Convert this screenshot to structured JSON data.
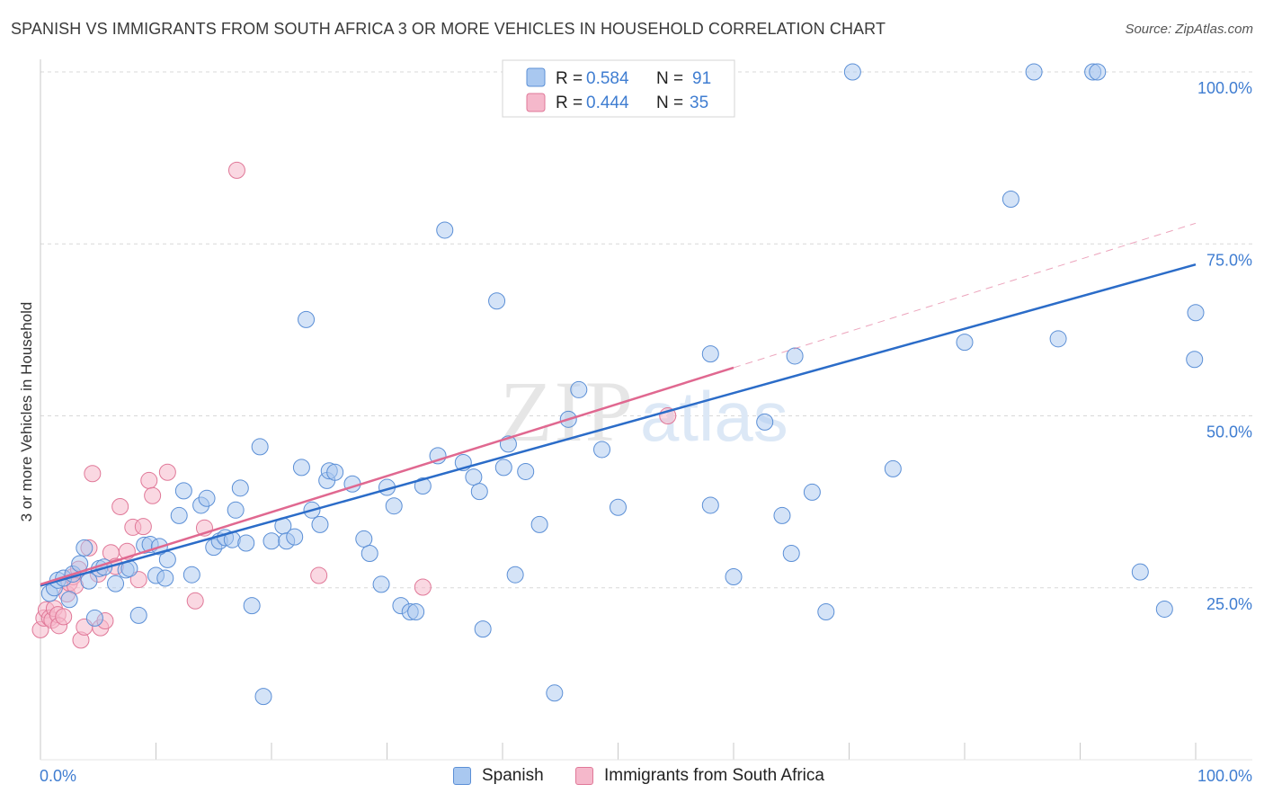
{
  "title": "SPANISH VS IMMIGRANTS FROM SOUTH AFRICA 3 OR MORE VEHICLES IN HOUSEHOLD CORRELATION CHART",
  "source": "Source: ZipAtlas.com",
  "watermark": {
    "part1": "ZIP",
    "part2": "atlas"
  },
  "colors": {
    "blue_fill": "#a9c8f0",
    "blue_stroke": "#5b8fd6",
    "blue_line": "#2b6cc8",
    "pink_fill": "#f5b8cb",
    "pink_stroke": "#e07898",
    "pink_line": "#e06890",
    "grid": "#d8d8d8",
    "axis_text": "#3f7dd1"
  },
  "legend": [
    {
      "r_label": "R = ",
      "r_value": "0.584",
      "n_label": "N = ",
      "n_value": "91"
    },
    {
      "r_label": "R = ",
      "r_value": "0.444",
      "n_label": "N = ",
      "n_value": "35"
    }
  ],
  "chart_data": {
    "type": "scatter",
    "title": "SPANISH VS IMMIGRANTS FROM SOUTH AFRICA 3 OR MORE VEHICLES IN HOUSEHOLD CORRELATION CHART",
    "xlabel": "",
    "ylabel": "3 or more Vehicles in Household",
    "xlim": [
      0,
      100
    ],
    "ylim": [
      0,
      105
    ],
    "x_tick_labels": [
      "0.0%",
      "100.0%"
    ],
    "y_ticks": [
      25,
      50,
      75,
      100
    ],
    "y_tick_labels": [
      "25.0%",
      "50.0%",
      "75.0%",
      "100.0%"
    ],
    "legend_position": "top-center",
    "series": [
      {
        "name": "Spanish",
        "color": "#a9c8f0",
        "trend": {
          "x0": 0,
          "y0": 25.3,
          "x1": 100,
          "y1": 72.0,
          "style": "solid"
        },
        "points": [
          [
            0.8,
            24.2
          ],
          [
            1.2,
            25.0
          ],
          [
            1.5,
            26.1
          ],
          [
            2.0,
            26.4
          ],
          [
            2.5,
            23.3
          ],
          [
            2.8,
            27.0
          ],
          [
            3.4,
            28.5
          ],
          [
            3.8,
            30.8
          ],
          [
            4.2,
            26.0
          ],
          [
            4.7,
            20.6
          ],
          [
            5.1,
            27.8
          ],
          [
            5.5,
            28.0
          ],
          [
            6.5,
            25.6
          ],
          [
            7.4,
            27.6
          ],
          [
            7.7,
            27.8
          ],
          [
            8.5,
            21.0
          ],
          [
            9.0,
            31.2
          ],
          [
            9.5,
            31.3
          ],
          [
            10.0,
            26.8
          ],
          [
            11.0,
            29.1
          ],
          [
            10.3,
            31.0
          ],
          [
            10.8,
            26.4
          ],
          [
            12.0,
            35.5
          ],
          [
            12.4,
            39.1
          ],
          [
            13.1,
            26.9
          ],
          [
            13.9,
            37.0
          ],
          [
            14.4,
            38.0
          ],
          [
            15.0,
            30.9
          ],
          [
            15.5,
            31.8
          ],
          [
            16.0,
            32.3
          ],
          [
            16.6,
            32.0
          ],
          [
            16.9,
            36.3
          ],
          [
            17.3,
            39.5
          ],
          [
            17.8,
            31.5
          ],
          [
            18.3,
            22.4
          ],
          [
            19.0,
            45.5
          ],
          [
            19.3,
            9.2
          ],
          [
            20.0,
            31.8
          ],
          [
            21.0,
            34.0
          ],
          [
            21.3,
            31.8
          ],
          [
            22.0,
            32.4
          ],
          [
            22.6,
            42.5
          ],
          [
            23.0,
            64.0
          ],
          [
            23.5,
            36.3
          ],
          [
            24.2,
            34.2
          ],
          [
            24.8,
            40.6
          ],
          [
            25.0,
            42.0
          ],
          [
            25.5,
            41.8
          ],
          [
            27.0,
            40.1
          ],
          [
            28.0,
            32.1
          ],
          [
            28.5,
            30.0
          ],
          [
            29.5,
            25.5
          ],
          [
            30.0,
            39.6
          ],
          [
            30.6,
            36.9
          ],
          [
            31.2,
            22.4
          ],
          [
            32.0,
            21.5
          ],
          [
            32.5,
            21.5
          ],
          [
            33.1,
            39.8
          ],
          [
            34.4,
            44.2
          ],
          [
            35.0,
            77.0
          ],
          [
            36.6,
            43.2
          ],
          [
            37.5,
            41.1
          ],
          [
            38.0,
            39.0
          ],
          [
            38.3,
            19.0
          ],
          [
            39.5,
            66.7
          ],
          [
            40.1,
            42.5
          ],
          [
            40.5,
            45.9
          ],
          [
            41.1,
            26.9
          ],
          [
            42.0,
            41.9
          ],
          [
            43.2,
            34.2
          ],
          [
            44.5,
            9.7
          ],
          [
            45.7,
            49.5
          ],
          [
            46.6,
            53.8
          ],
          [
            48.6,
            45.1
          ],
          [
            50.0,
            36.7
          ],
          [
            58.0,
            59.0
          ],
          [
            58.0,
            37.0
          ],
          [
            60.0,
            26.6
          ],
          [
            62.7,
            49.1
          ],
          [
            64.2,
            35.5
          ],
          [
            65.0,
            30.0
          ],
          [
            65.3,
            58.7
          ],
          [
            66.8,
            38.9
          ],
          [
            68.0,
            21.5
          ],
          [
            70.3,
            100.0
          ],
          [
            73.8,
            42.3
          ],
          [
            80.0,
            60.7
          ],
          [
            84.0,
            81.5
          ],
          [
            86.0,
            100.0
          ],
          [
            88.1,
            61.2
          ],
          [
            91.1,
            100.0
          ],
          [
            91.5,
            100.0
          ],
          [
            95.2,
            27.3
          ],
          [
            97.3,
            21.9
          ],
          [
            99.9,
            58.2
          ],
          [
            100.0,
            65.0
          ]
        ]
      },
      {
        "name": "Immigrants from South Africa",
        "color": "#f5b8cb",
        "trend": {
          "x0": 0,
          "y0": 25.5,
          "x1": 60,
          "y1": 57.0,
          "style": "solid",
          "extension": {
            "x1": 100,
            "y1": 78.0,
            "style": "dashed"
          }
        },
        "points": [
          [
            0.0,
            18.9
          ],
          [
            0.3,
            20.6
          ],
          [
            0.5,
            21.8
          ],
          [
            0.8,
            20.6
          ],
          [
            1.0,
            20.3
          ],
          [
            1.2,
            22.0
          ],
          [
            1.5,
            21.1
          ],
          [
            1.6,
            19.5
          ],
          [
            2.0,
            20.8
          ],
          [
            2.3,
            24.1
          ],
          [
            2.5,
            25.7
          ],
          [
            2.8,
            26.6
          ],
          [
            3.0,
            25.3
          ],
          [
            3.3,
            27.7
          ],
          [
            3.5,
            17.4
          ],
          [
            3.8,
            19.3
          ],
          [
            4.2,
            30.8
          ],
          [
            4.5,
            41.6
          ],
          [
            5.0,
            27.0
          ],
          [
            5.2,
            19.2
          ],
          [
            5.6,
            20.2
          ],
          [
            6.1,
            30.1
          ],
          [
            6.5,
            28.1
          ],
          [
            6.9,
            36.8
          ],
          [
            7.5,
            30.3
          ],
          [
            8.0,
            33.8
          ],
          [
            8.5,
            26.2
          ],
          [
            8.9,
            33.9
          ],
          [
            9.4,
            40.6
          ],
          [
            9.7,
            38.4
          ],
          [
            11.0,
            41.8
          ],
          [
            13.4,
            23.1
          ],
          [
            14.2,
            33.7
          ],
          [
            17.0,
            85.7
          ],
          [
            24.1,
            26.8
          ],
          [
            33.1,
            25.1
          ],
          [
            54.3,
            50.0
          ]
        ]
      }
    ]
  },
  "bottom_legend": [
    {
      "label": "Spanish"
    },
    {
      "label": "Immigrants from South Africa"
    }
  ]
}
